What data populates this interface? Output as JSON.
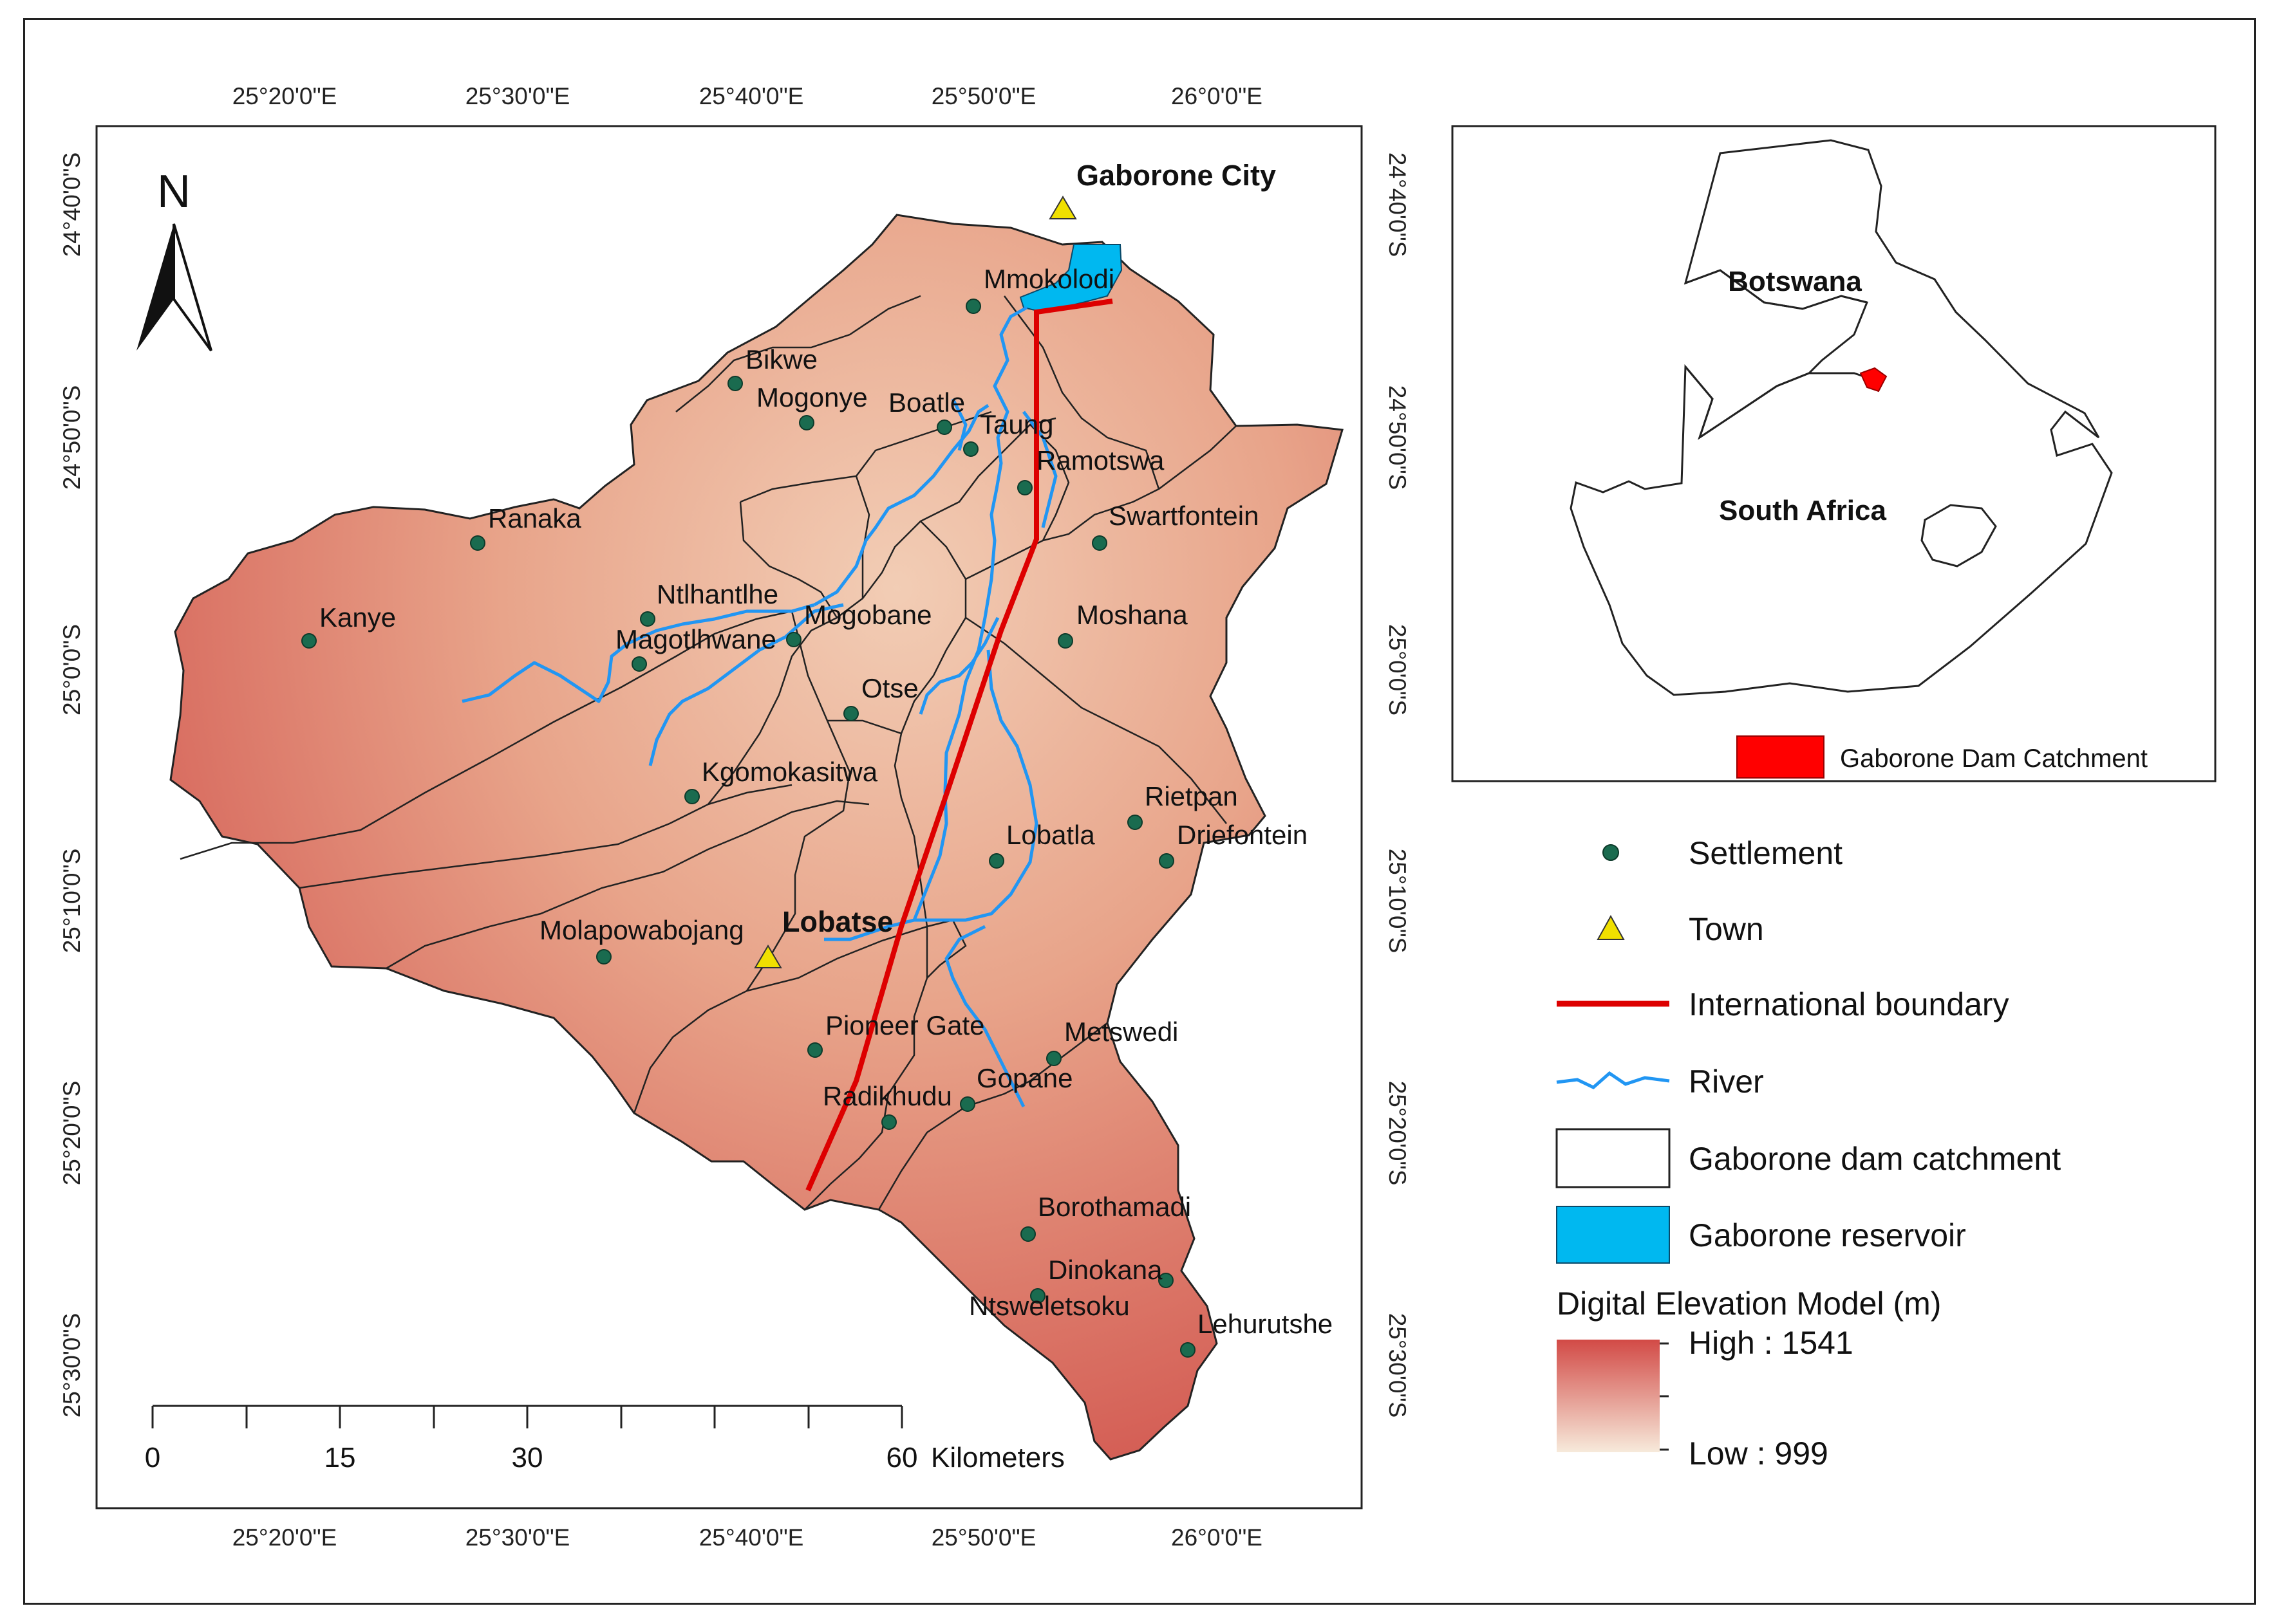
{
  "north_arrow": {
    "label": "N"
  },
  "coords": {
    "top_longitudes": [
      "25°20'0\"E",
      "25°30'0\"E",
      "25°40'0\"E",
      "25°50'0\"E",
      "26°0'0\"E"
    ],
    "bottom_longitudes": [
      "25°20'0\"E",
      "25°30'0\"E",
      "25°40'0\"E",
      "25°50'0\"E",
      "26°0'0\"E"
    ],
    "left_latitudes": [
      "24°40'0\"S",
      "24°50'0\"S",
      "25°0'0\"S",
      "25°10'0\"S",
      "25°20'0\"S",
      "25°30'0\"S"
    ],
    "right_latitudes": [
      "24°40'0\"S",
      "24°50'0\"S",
      "25°0'0\"S",
      "25°10'0\"S",
      "25°20'0\"S",
      "25°30'0\"S"
    ]
  },
  "towns": [
    "Gaborone City",
    "Lobatse"
  ],
  "settlements": [
    "Mmokolodi",
    "Bikwe",
    "Mogonye",
    "Boatle",
    "Taung",
    "Ramotswa",
    "Swartfontein",
    "Ranaka",
    "Kanye",
    "Ntlhantlhe",
    "Mogobane",
    "Magotlhwane",
    "Moshana",
    "Otse",
    "Kgomokasitwa",
    "Rietpan",
    "Driefontein",
    "Lobatla",
    "Molapowabojang",
    "Pioneer Gate",
    "Metswedi",
    "Gopane",
    "Radikhudu",
    "Borothamadi",
    "Dinokana",
    "Ntsweletsoku",
    "Lehurutshe"
  ],
  "scale_bar": {
    "ticks": [
      "0",
      "15",
      "30",
      "60"
    ],
    "unit": "Kilometers"
  },
  "inset": {
    "countries": [
      "Botswana",
      "South Africa"
    ],
    "legend_label": "Gaborone Dam Catchment"
  },
  "legend": {
    "items": [
      "Settlement",
      "Town",
      "International boundary",
      "River",
      "Gaborone dam catchment",
      "Gaborone reservoir"
    ],
    "dem_title": "Digital Elevation Model (m)",
    "dem_high": "High : 1541",
    "dem_low": "Low : 999"
  },
  "colors": {
    "dem_high": "#d24a46",
    "dem_low": "#f7eadb",
    "reservoir": "#00b8f0",
    "river": "#2196f3",
    "boundary": "#dd0000",
    "settlement": "#1a6b4f",
    "town": "#f0e000",
    "inset_catchment": "#ff0000"
  }
}
